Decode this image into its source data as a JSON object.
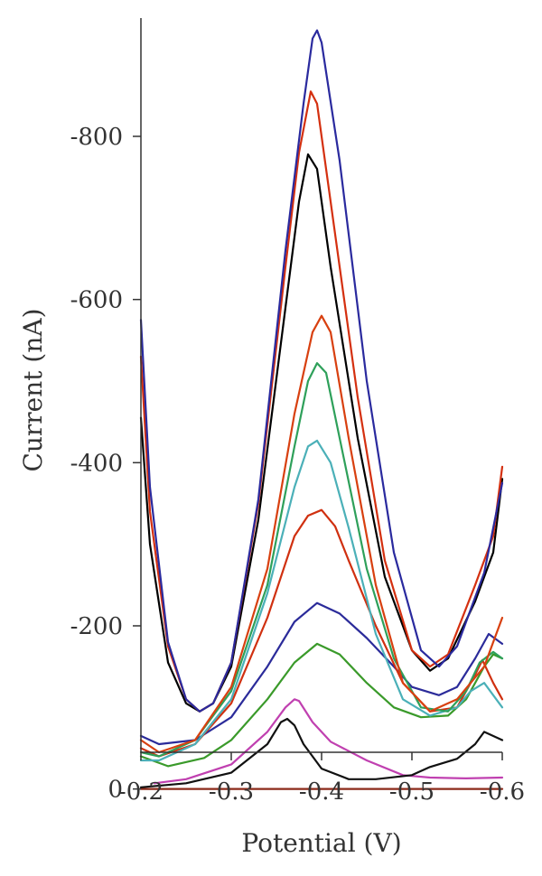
{
  "chart_data": {
    "type": "line",
    "title": "",
    "xlabel": "Potential (V)",
    "ylabel": "Current (nA)",
    "xlim": [
      -0.2,
      -0.6
    ],
    "ylim": [
      -45,
      -945
    ],
    "xticks": [
      {
        "value": -0.2,
        "label": "-0.2"
      },
      {
        "value": -0.3,
        "label": "-0.3"
      },
      {
        "value": -0.4,
        "label": "-0.4"
      },
      {
        "value": -0.5,
        "label": "-0.5"
      },
      {
        "value": -0.6,
        "label": "-0.6"
      }
    ],
    "yticks": [
      {
        "value": 0,
        "label": "0"
      },
      {
        "value": -200,
        "label": "-200"
      },
      {
        "value": -400,
        "label": "-400"
      },
      {
        "value": -600,
        "label": "-600"
      },
      {
        "value": -800,
        "label": "-800"
      }
    ],
    "grid": false,
    "legend": "none",
    "series": [
      {
        "color": "#8b2a1a",
        "points": [
          [
            -0.2,
            0
          ],
          [
            -0.3,
            0
          ],
          [
            -0.4,
            0
          ],
          [
            -0.5,
            0
          ],
          [
            -0.6,
            0
          ]
        ]
      },
      {
        "color": "#c040b0",
        "points": [
          [
            -0.215,
            -7
          ],
          [
            -0.25,
            -12
          ],
          [
            -0.3,
            -30
          ],
          [
            -0.34,
            -70
          ],
          [
            -0.36,
            -100
          ],
          [
            -0.37,
            -110
          ],
          [
            -0.375,
            -108
          ],
          [
            -0.39,
            -82
          ],
          [
            -0.41,
            -58
          ],
          [
            -0.45,
            -35
          ],
          [
            -0.49,
            -17
          ],
          [
            -0.52,
            -14
          ],
          [
            -0.56,
            -13
          ],
          [
            -0.6,
            -14
          ]
        ]
      },
      {
        "color": "#111111",
        "points": [
          [
            -0.2,
            -2
          ],
          [
            -0.25,
            -7
          ],
          [
            -0.3,
            -20
          ],
          [
            -0.34,
            -55
          ],
          [
            -0.355,
            -82
          ],
          [
            -0.362,
            -86
          ],
          [
            -0.37,
            -78
          ],
          [
            -0.38,
            -55
          ],
          [
            -0.4,
            -25
          ],
          [
            -0.43,
            -12
          ],
          [
            -0.46,
            -12
          ],
          [
            -0.5,
            -17
          ],
          [
            -0.52,
            -27
          ],
          [
            -0.55,
            -37
          ],
          [
            -0.57,
            -55
          ],
          [
            -0.58,
            -70
          ],
          [
            -0.6,
            -60
          ]
        ]
      },
      {
        "color": "#3a9a2a",
        "points": [
          [
            -0.2,
            -40
          ],
          [
            -0.23,
            -28
          ],
          [
            -0.27,
            -38
          ],
          [
            -0.3,
            -60
          ],
          [
            -0.34,
            -110
          ],
          [
            -0.37,
            -155
          ],
          [
            -0.395,
            -178
          ],
          [
            -0.42,
            -165
          ],
          [
            -0.45,
            -130
          ],
          [
            -0.48,
            -100
          ],
          [
            -0.51,
            -88
          ],
          [
            -0.54,
            -90
          ],
          [
            -0.56,
            -110
          ],
          [
            -0.58,
            -150
          ],
          [
            -0.59,
            -165
          ],
          [
            -0.6,
            -160
          ]
        ]
      },
      {
        "color": "#2b2b9a",
        "points": [
          [
            -0.2,
            -65
          ],
          [
            -0.22,
            -55
          ],
          [
            -0.26,
            -60
          ],
          [
            -0.3,
            -88
          ],
          [
            -0.34,
            -150
          ],
          [
            -0.37,
            -205
          ],
          [
            -0.395,
            -228
          ],
          [
            -0.42,
            -215
          ],
          [
            -0.45,
            -185
          ],
          [
            -0.48,
            -150
          ],
          [
            -0.5,
            -125
          ],
          [
            -0.53,
            -115
          ],
          [
            -0.55,
            -125
          ],
          [
            -0.57,
            -160
          ],
          [
            -0.585,
            -190
          ],
          [
            -0.6,
            -178
          ]
        ]
      },
      {
        "color": "#d03010",
        "points": [
          [
            -0.2,
            -50
          ],
          [
            -0.22,
            -40
          ],
          [
            -0.26,
            -55
          ],
          [
            -0.3,
            -105
          ],
          [
            -0.34,
            -210
          ],
          [
            -0.37,
            -310
          ],
          [
            -0.385,
            -335
          ],
          [
            -0.4,
            -342
          ],
          [
            -0.415,
            -322
          ],
          [
            -0.43,
            -280
          ],
          [
            -0.46,
            -200
          ],
          [
            -0.49,
            -130
          ],
          [
            -0.52,
            -95
          ],
          [
            -0.55,
            -100
          ],
          [
            -0.57,
            -140
          ],
          [
            -0.578,
            -158
          ],
          [
            -0.59,
            -130
          ],
          [
            -0.6,
            -110
          ]
        ]
      },
      {
        "color": "#4bb0b8",
        "points": [
          [
            -0.2,
            -35
          ],
          [
            -0.22,
            -35
          ],
          [
            -0.26,
            -55
          ],
          [
            -0.3,
            -110
          ],
          [
            -0.34,
            -240
          ],
          [
            -0.37,
            -370
          ],
          [
            -0.385,
            -420
          ],
          [
            -0.395,
            -427
          ],
          [
            -0.41,
            -400
          ],
          [
            -0.43,
            -320
          ],
          [
            -0.46,
            -190
          ],
          [
            -0.49,
            -110
          ],
          [
            -0.52,
            -90
          ],
          [
            -0.55,
            -100
          ],
          [
            -0.565,
            -120
          ],
          [
            -0.58,
            -130
          ],
          [
            -0.6,
            -100
          ]
        ]
      },
      {
        "color": "#2ea05a",
        "points": [
          [
            -0.2,
            -45
          ],
          [
            -0.22,
            -40
          ],
          [
            -0.26,
            -60
          ],
          [
            -0.3,
            -120
          ],
          [
            -0.34,
            -250
          ],
          [
            -0.37,
            -420
          ],
          [
            -0.385,
            -500
          ],
          [
            -0.395,
            -522
          ],
          [
            -0.405,
            -510
          ],
          [
            -0.42,
            -430
          ],
          [
            -0.45,
            -270
          ],
          [
            -0.48,
            -160
          ],
          [
            -0.51,
            -100
          ],
          [
            -0.54,
            -95
          ],
          [
            -0.56,
            -120
          ],
          [
            -0.575,
            -155
          ],
          [
            -0.59,
            -168
          ],
          [
            -0.6,
            -160
          ]
        ]
      },
      {
        "color": "#d84010",
        "points": [
          [
            -0.2,
            -60
          ],
          [
            -0.22,
            -45
          ],
          [
            -0.26,
            -60
          ],
          [
            -0.3,
            -125
          ],
          [
            -0.34,
            -270
          ],
          [
            -0.37,
            -460
          ],
          [
            -0.39,
            -560
          ],
          [
            -0.4,
            -580
          ],
          [
            -0.41,
            -560
          ],
          [
            -0.43,
            -430
          ],
          [
            -0.46,
            -250
          ],
          [
            -0.49,
            -130
          ],
          [
            -0.52,
            -95
          ],
          [
            -0.55,
            -110
          ],
          [
            -0.58,
            -150
          ],
          [
            -0.6,
            -210
          ]
        ]
      },
      {
        "color": "#000000",
        "points": [
          [
            -0.2,
            -455
          ],
          [
            -0.21,
            -300
          ],
          [
            -0.23,
            -155
          ],
          [
            -0.25,
            -105
          ],
          [
            -0.265,
            -95
          ],
          [
            -0.28,
            -105
          ],
          [
            -0.3,
            -150
          ],
          [
            -0.33,
            -330
          ],
          [
            -0.36,
            -590
          ],
          [
            -0.375,
            -720
          ],
          [
            -0.385,
            -778
          ],
          [
            -0.395,
            -760
          ],
          [
            -0.41,
            -640
          ],
          [
            -0.44,
            -430
          ],
          [
            -0.47,
            -260
          ],
          [
            -0.5,
            -170
          ],
          [
            -0.52,
            -145
          ],
          [
            -0.54,
            -160
          ],
          [
            -0.57,
            -230
          ],
          [
            -0.59,
            -290
          ],
          [
            -0.6,
            -380
          ]
        ]
      },
      {
        "color": "#d43010",
        "points": [
          [
            -0.2,
            -530
          ],
          [
            -0.21,
            -340
          ],
          [
            -0.23,
            -175
          ],
          [
            -0.25,
            -110
          ],
          [
            -0.265,
            -95
          ],
          [
            -0.28,
            -105
          ],
          [
            -0.3,
            -155
          ],
          [
            -0.33,
            -350
          ],
          [
            -0.36,
            -640
          ],
          [
            -0.375,
            -780
          ],
          [
            -0.388,
            -855
          ],
          [
            -0.395,
            -840
          ],
          [
            -0.41,
            -720
          ],
          [
            -0.44,
            -480
          ],
          [
            -0.47,
            -280
          ],
          [
            -0.5,
            -170
          ],
          [
            -0.52,
            -150
          ],
          [
            -0.54,
            -165
          ],
          [
            -0.57,
            -250
          ],
          [
            -0.59,
            -310
          ],
          [
            -0.6,
            -395
          ]
        ]
      },
      {
        "color": "#2a2a9e",
        "points": [
          [
            -0.2,
            -575
          ],
          [
            -0.21,
            -370
          ],
          [
            -0.23,
            -180
          ],
          [
            -0.25,
            -110
          ],
          [
            -0.265,
            -95
          ],
          [
            -0.28,
            -105
          ],
          [
            -0.3,
            -155
          ],
          [
            -0.33,
            -355
          ],
          [
            -0.36,
            -660
          ],
          [
            -0.38,
            -840
          ],
          [
            -0.39,
            -920
          ],
          [
            -0.395,
            -930
          ],
          [
            -0.4,
            -915
          ],
          [
            -0.42,
            -770
          ],
          [
            -0.45,
            -500
          ],
          [
            -0.48,
            -290
          ],
          [
            -0.51,
            -170
          ],
          [
            -0.53,
            -150
          ],
          [
            -0.55,
            -175
          ],
          [
            -0.58,
            -265
          ],
          [
            -0.6,
            -375
          ]
        ]
      }
    ]
  }
}
